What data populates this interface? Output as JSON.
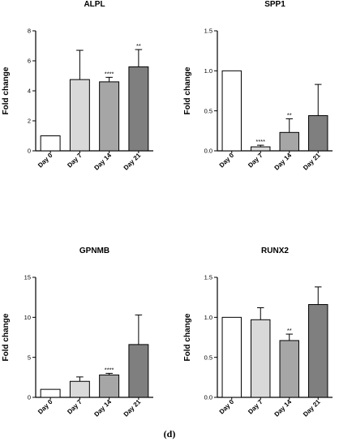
{
  "caption": "(d)",
  "colors": {
    "bar_fills": [
      "#ffffff",
      "#d9d9d9",
      "#a6a6a6",
      "#7f7f7f"
    ],
    "bar_stroke": "#000000",
    "axis": "#000000"
  },
  "chart_data": [
    {
      "type": "bar",
      "title": "ALPL",
      "ylabel": "Fold change",
      "categories": [
        "Day 0",
        "Day 7",
        "Day 14",
        "Day 21"
      ],
      "values": [
        1.0,
        4.75,
        4.6,
        5.6
      ],
      "errors": [
        0.0,
        1.95,
        0.3,
        1.15
      ],
      "significance": [
        "",
        "",
        "****",
        "**"
      ],
      "ylim": [
        0,
        8
      ],
      "yticks": [
        0,
        2,
        4,
        6,
        8
      ],
      "ytick_labels": [
        "0",
        "2",
        "4",
        "6",
        "8"
      ],
      "grid": false,
      "legend": "none"
    },
    {
      "type": "bar",
      "title": "SPP1",
      "ylabel": "Fold change",
      "categories": [
        "Day 0",
        "Day 7",
        "Day 14",
        "Day 21"
      ],
      "values": [
        1.0,
        0.05,
        0.23,
        0.44
      ],
      "errors": [
        0.0,
        0.02,
        0.17,
        0.39
      ],
      "significance": [
        "",
        "****",
        "**",
        ""
      ],
      "ylim": [
        0,
        1.5
      ],
      "yticks": [
        0,
        0.5,
        1.0,
        1.5
      ],
      "ytick_labels": [
        "0.0",
        "0.5",
        "1.0",
        "1.5"
      ],
      "grid": false,
      "legend": "none"
    },
    {
      "type": "bar",
      "title": "GPNMB",
      "ylabel": "Fold change",
      "categories": [
        "Day 0",
        "Day 7",
        "Day 14",
        "Day 21"
      ],
      "values": [
        1.0,
        2.0,
        2.8,
        6.6
      ],
      "errors": [
        0.0,
        0.55,
        0.2,
        3.7
      ],
      "significance": [
        "",
        "",
        "****",
        ""
      ],
      "ylim": [
        0,
        15
      ],
      "yticks": [
        0,
        5,
        10,
        15
      ],
      "ytick_labels": [
        "0",
        "5",
        "10",
        "15"
      ],
      "grid": false,
      "legend": "none"
    },
    {
      "type": "bar",
      "title": "RUNX2",
      "ylabel": "Fold change",
      "categories": [
        "Day 0",
        "Day 7",
        "Day 14",
        "Day 21"
      ],
      "values": [
        1.0,
        0.97,
        0.71,
        1.16
      ],
      "errors": [
        0.0,
        0.15,
        0.08,
        0.22
      ],
      "significance": [
        "",
        "",
        "**",
        ""
      ],
      "ylim": [
        0,
        1.5
      ],
      "yticks": [
        0,
        0.5,
        1.0,
        1.5
      ],
      "ytick_labels": [
        "0.0",
        "0.5",
        "1.0",
        "1.5"
      ],
      "grid": false,
      "legend": "none"
    }
  ]
}
